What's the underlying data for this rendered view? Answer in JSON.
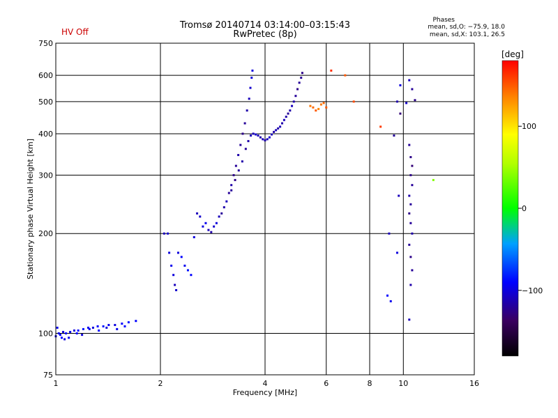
{
  "header": {
    "title": "Tromsø 20140714 03:14:00–03:15:43",
    "subtitle": "RwPretec (8p)",
    "hv_status": "HV Off",
    "hv_color": "#cc0000",
    "stats_title": "Phases",
    "stats_o": "mean, sd,O: −75.9, 18.0",
    "stats_x": "mean, sd,X: 103.1, 26.5"
  },
  "chart_data": {
    "type": "scatter",
    "title": "Tromsø 20140714 03:14:00–03:15:43",
    "subtitle": "RwPretec (8p)",
    "xlabel": "Frequency [MHz]",
    "ylabel": "Stationary phase Virtual Height [km]",
    "x_scale": "log",
    "y_scale": "log",
    "xlim": [
      1,
      16
    ],
    "ylim": [
      75,
      750
    ],
    "x_ticks": [
      1,
      2,
      4,
      6,
      8,
      10,
      16
    ],
    "x_tick_labels": [
      "1",
      "2",
      "4",
      "6",
      "8",
      "10",
      "16"
    ],
    "y_ticks": [
      75,
      100,
      200,
      300,
      400,
      500,
      600,
      750
    ],
    "y_tick_labels": [
      "75",
      "100",
      "200",
      "300",
      "400",
      "500",
      "600",
      "750"
    ],
    "grid": true,
    "colorbar": {
      "label": "[deg]",
      "range": [
        -180,
        180
      ],
      "ticks": [
        100,
        0,
        -100
      ],
      "tick_labels": [
        "100",
        "0",
        "−100"
      ]
    },
    "series": [
      {
        "points": [
          [
            1.0,
            98
          ],
          [
            1.02,
            100
          ],
          [
            1.03,
            99
          ],
          [
            1.05,
            101
          ],
          [
            1.07,
            100
          ],
          [
            1.1,
            101
          ],
          [
            1.13,
            102
          ],
          [
            1.16,
            102
          ],
          [
            1.2,
            103
          ],
          [
            1.24,
            104
          ],
          [
            1.28,
            104
          ],
          [
            1.32,
            105
          ],
          [
            1.37,
            105
          ],
          [
            1.42,
            106
          ],
          [
            1.48,
            106
          ],
          [
            1.55,
            107
          ],
          [
            1.62,
            108
          ],
          [
            1.7,
            109
          ],
          [
            1.01,
            104
          ],
          [
            1.04,
            97
          ],
          [
            1.06,
            96
          ],
          [
            1.09,
            97
          ],
          [
            1.15,
            100
          ],
          [
            1.19,
            99
          ],
          [
            1.25,
            103
          ],
          [
            1.33,
            102
          ],
          [
            1.4,
            104
          ],
          [
            1.5,
            103
          ],
          [
            1.58,
            105
          ],
          [
            2.05,
            200
          ],
          [
            2.1,
            200
          ],
          [
            2.12,
            175
          ],
          [
            2.15,
            160
          ],
          [
            2.18,
            150
          ],
          [
            2.2,
            140
          ],
          [
            2.22,
            135
          ],
          [
            2.25,
            175
          ],
          [
            2.3,
            170
          ],
          [
            2.35,
            160
          ],
          [
            2.4,
            155
          ],
          [
            2.45,
            150
          ],
          [
            2.5,
            195
          ],
          [
            2.55,
            230
          ],
          [
            2.6,
            225
          ],
          [
            2.65,
            210
          ],
          [
            2.7,
            215
          ],
          [
            2.75,
            205
          ],
          [
            2.8,
            202
          ],
          [
            2.85,
            210
          ],
          [
            2.9,
            215
          ],
          [
            2.95,
            225
          ],
          [
            3.0,
            230
          ],
          [
            3.05,
            240
          ],
          [
            3.1,
            250
          ],
          [
            3.15,
            265
          ],
          [
            3.2,
            280
          ],
          [
            3.25,
            300
          ],
          [
            3.3,
            320
          ],
          [
            3.35,
            345
          ],
          [
            3.4,
            370
          ],
          [
            3.45,
            400
          ],
          [
            3.5,
            430
          ],
          [
            3.55,
            470
          ],
          [
            3.6,
            510
          ],
          [
            3.63,
            550
          ],
          [
            3.66,
            590
          ],
          [
            3.68,
            620
          ],
          [
            3.2,
            270
          ],
          [
            3.28,
            290
          ],
          [
            3.36,
            310
          ],
          [
            3.44,
            330
          ],
          [
            3.52,
            360
          ],
          [
            3.58,
            380
          ],
          [
            3.64,
            395
          ],
          [
            3.7,
            400
          ],
          [
            3.76,
            398
          ],
          [
            3.82,
            395
          ],
          [
            3.88,
            390
          ],
          [
            3.94,
            385
          ],
          [
            4.0,
            382
          ],
          [
            4.06,
            385
          ],
          [
            4.12,
            390
          ],
          [
            4.18,
            398
          ],
          [
            4.24,
            405
          ],
          [
            4.3,
            410
          ],
          [
            4.36,
            415
          ],
          [
            4.42,
            420
          ],
          [
            4.48,
            430
          ],
          [
            4.54,
            440
          ],
          [
            4.6,
            450
          ],
          [
            4.66,
            460
          ],
          [
            4.72,
            470
          ],
          [
            4.78,
            485
          ],
          [
            4.84,
            500
          ],
          [
            4.9,
            520
          ],
          [
            4.96,
            545
          ],
          [
            5.02,
            570
          ],
          [
            5.08,
            590
          ],
          [
            5.12,
            610
          ],
          [
            5.4,
            485
          ],
          [
            5.5,
            480
          ],
          [
            5.6,
            470
          ],
          [
            5.7,
            475
          ],
          [
            5.8,
            490
          ],
          [
            5.9,
            495
          ],
          [
            6.0,
            480
          ],
          [
            9.8,
            560
          ],
          [
            10.4,
            580
          ],
          [
            10.6,
            545
          ],
          [
            10.8,
            505
          ],
          [
            10.2,
            495
          ],
          [
            9.6,
            500
          ],
          [
            10.4,
            370
          ],
          [
            10.5,
            340
          ],
          [
            10.6,
            320
          ],
          [
            10.5,
            300
          ],
          [
            10.6,
            280
          ],
          [
            10.4,
            260
          ],
          [
            10.5,
            245
          ],
          [
            10.4,
            230
          ],
          [
            10.5,
            215
          ],
          [
            10.6,
            200
          ],
          [
            10.4,
            185
          ],
          [
            10.5,
            170
          ],
          [
            10.6,
            155
          ],
          [
            10.5,
            140
          ],
          [
            9.4,
            395
          ],
          [
            9.6,
            175
          ],
          [
            9.7,
            260
          ],
          [
            9.8,
            460
          ],
          [
            8.6,
            420
          ],
          [
            7.2,
            500
          ],
          [
            6.8,
            600
          ],
          [
            6.2,
            620
          ],
          [
            9.1,
            200
          ],
          [
            9.0,
            130
          ],
          [
            9.2,
            125
          ],
          [
            10.4,
            110
          ],
          [
            12.2,
            290
          ]
        ],
        "phases": [
          -100,
          -95,
          -90,
          -100,
          -90,
          -95,
          -100,
          -90,
          -85,
          -95,
          -100,
          -90,
          -85,
          -95,
          -100,
          -90,
          -85,
          -90,
          -95,
          -90,
          -100,
          -95,
          -90,
          -100,
          -95,
          -90,
          -100,
          -95,
          -90,
          -110,
          -105,
          -100,
          -95,
          -100,
          -110,
          -105,
          -100,
          -90,
          -95,
          -85,
          -90,
          -100,
          -110,
          -105,
          -100,
          -95,
          -110,
          -115,
          -105,
          -100,
          -110,
          -120,
          -115,
          -110,
          -120,
          -115,
          -125,
          -120,
          -115,
          -120,
          -125,
          -120,
          -115,
          -110,
          -105,
          -100,
          -100,
          -120,
          -125,
          -120,
          -115,
          -120,
          -115,
          -110,
          -110,
          -105,
          -110,
          -115,
          -110,
          -115,
          -110,
          -105,
          -110,
          -115,
          -110,
          -115,
          -110,
          -115,
          -110,
          -115,
          -120,
          -115,
          -110,
          -115,
          -120,
          -125,
          -120,
          -120,
          -125,
          140,
          145,
          150,
          135,
          140,
          145,
          150,
          -100,
          -110,
          -120,
          -125,
          -105,
          -115,
          -120,
          -125,
          -130,
          -125,
          -120,
          -115,
          -120,
          -125,
          -120,
          -115,
          -120,
          -125,
          -120,
          -115,
          -120,
          -100,
          -110,
          -130,
          160,
          155,
          150,
          165,
          -110,
          -90,
          -95,
          -110,
          40
        ]
      }
    ]
  }
}
